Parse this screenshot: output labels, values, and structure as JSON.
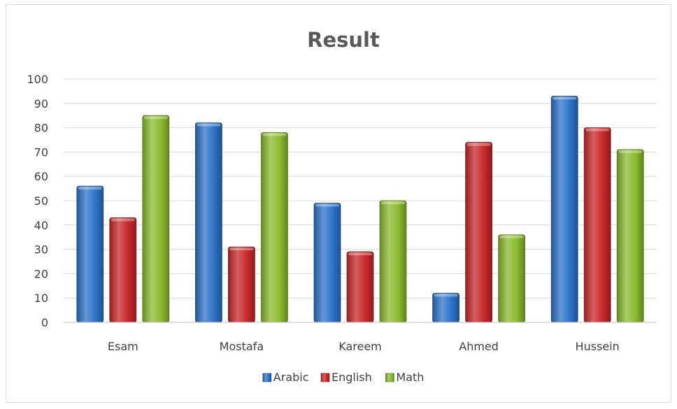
{
  "chart_data": {
    "type": "bar",
    "title": "Result",
    "xlabel": "",
    "ylabel": "",
    "categories": [
      "Esam",
      "Mostafa",
      "Kareem",
      "Ahmed",
      "Hussein"
    ],
    "series": [
      {
        "name": "Arabic",
        "color": "#2e74c9",
        "values": [
          56,
          82,
          49,
          12,
          93
        ]
      },
      {
        "name": "English",
        "color": "#c8292b",
        "values": [
          43,
          31,
          29,
          74,
          80
        ]
      },
      {
        "name": "Math",
        "color": "#8cbb30",
        "values": [
          85,
          78,
          50,
          36,
          71
        ]
      }
    ],
    "ylim": [
      0,
      100
    ],
    "yticks": [
      "0",
      "10",
      "20",
      "30",
      "40",
      "50",
      "60",
      "70",
      "80",
      "90",
      "100"
    ],
    "grid": true,
    "legend_position": "bottom"
  }
}
